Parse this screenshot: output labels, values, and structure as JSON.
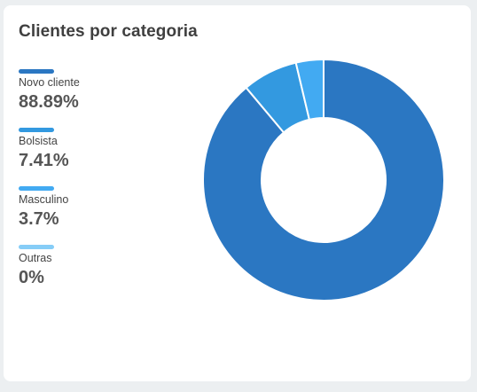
{
  "card": {
    "title": "Clientes por categoria"
  },
  "chart_data": {
    "type": "pie",
    "donut": true,
    "legend_position": "left",
    "categories": [
      "Novo cliente",
      "Bolsista",
      "Masculino",
      "Outras"
    ],
    "values": [
      88.89,
      7.41,
      3.7,
      0
    ],
    "value_labels": [
      "88.89%",
      "7.41%",
      "3.7%",
      "0%"
    ],
    "colors": [
      "#2b77c2",
      "#3399e0",
      "#42aaf2",
      "#86cdf7"
    ]
  }
}
